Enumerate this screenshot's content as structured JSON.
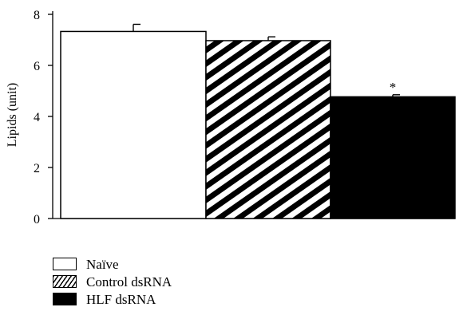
{
  "chart_data": {
    "type": "bar",
    "title": "",
    "xlabel": "",
    "ylabel": "Lipids (unit)",
    "ylim": [
      0,
      8
    ],
    "yticks": [
      "0",
      "2",
      "4",
      "6",
      "8"
    ],
    "categories": [
      "Naïve",
      "Control dsRNA",
      "HLF dsRNA"
    ],
    "values": [
      7.33,
      6.97,
      4.77
    ],
    "errors": [
      0.28,
      0.15,
      0.08
    ],
    "annotations": [
      "",
      "",
      "*"
    ],
    "fills": [
      "white",
      "hatched",
      "black"
    ],
    "grid": false,
    "legend_position": "bottom-left"
  },
  "legend": {
    "items": [
      {
        "label": "Naïve",
        "fill": "white"
      },
      {
        "label": "Control dsRNA",
        "fill": "hatched"
      },
      {
        "label": "HLF dsRNA",
        "fill": "black"
      }
    ]
  }
}
